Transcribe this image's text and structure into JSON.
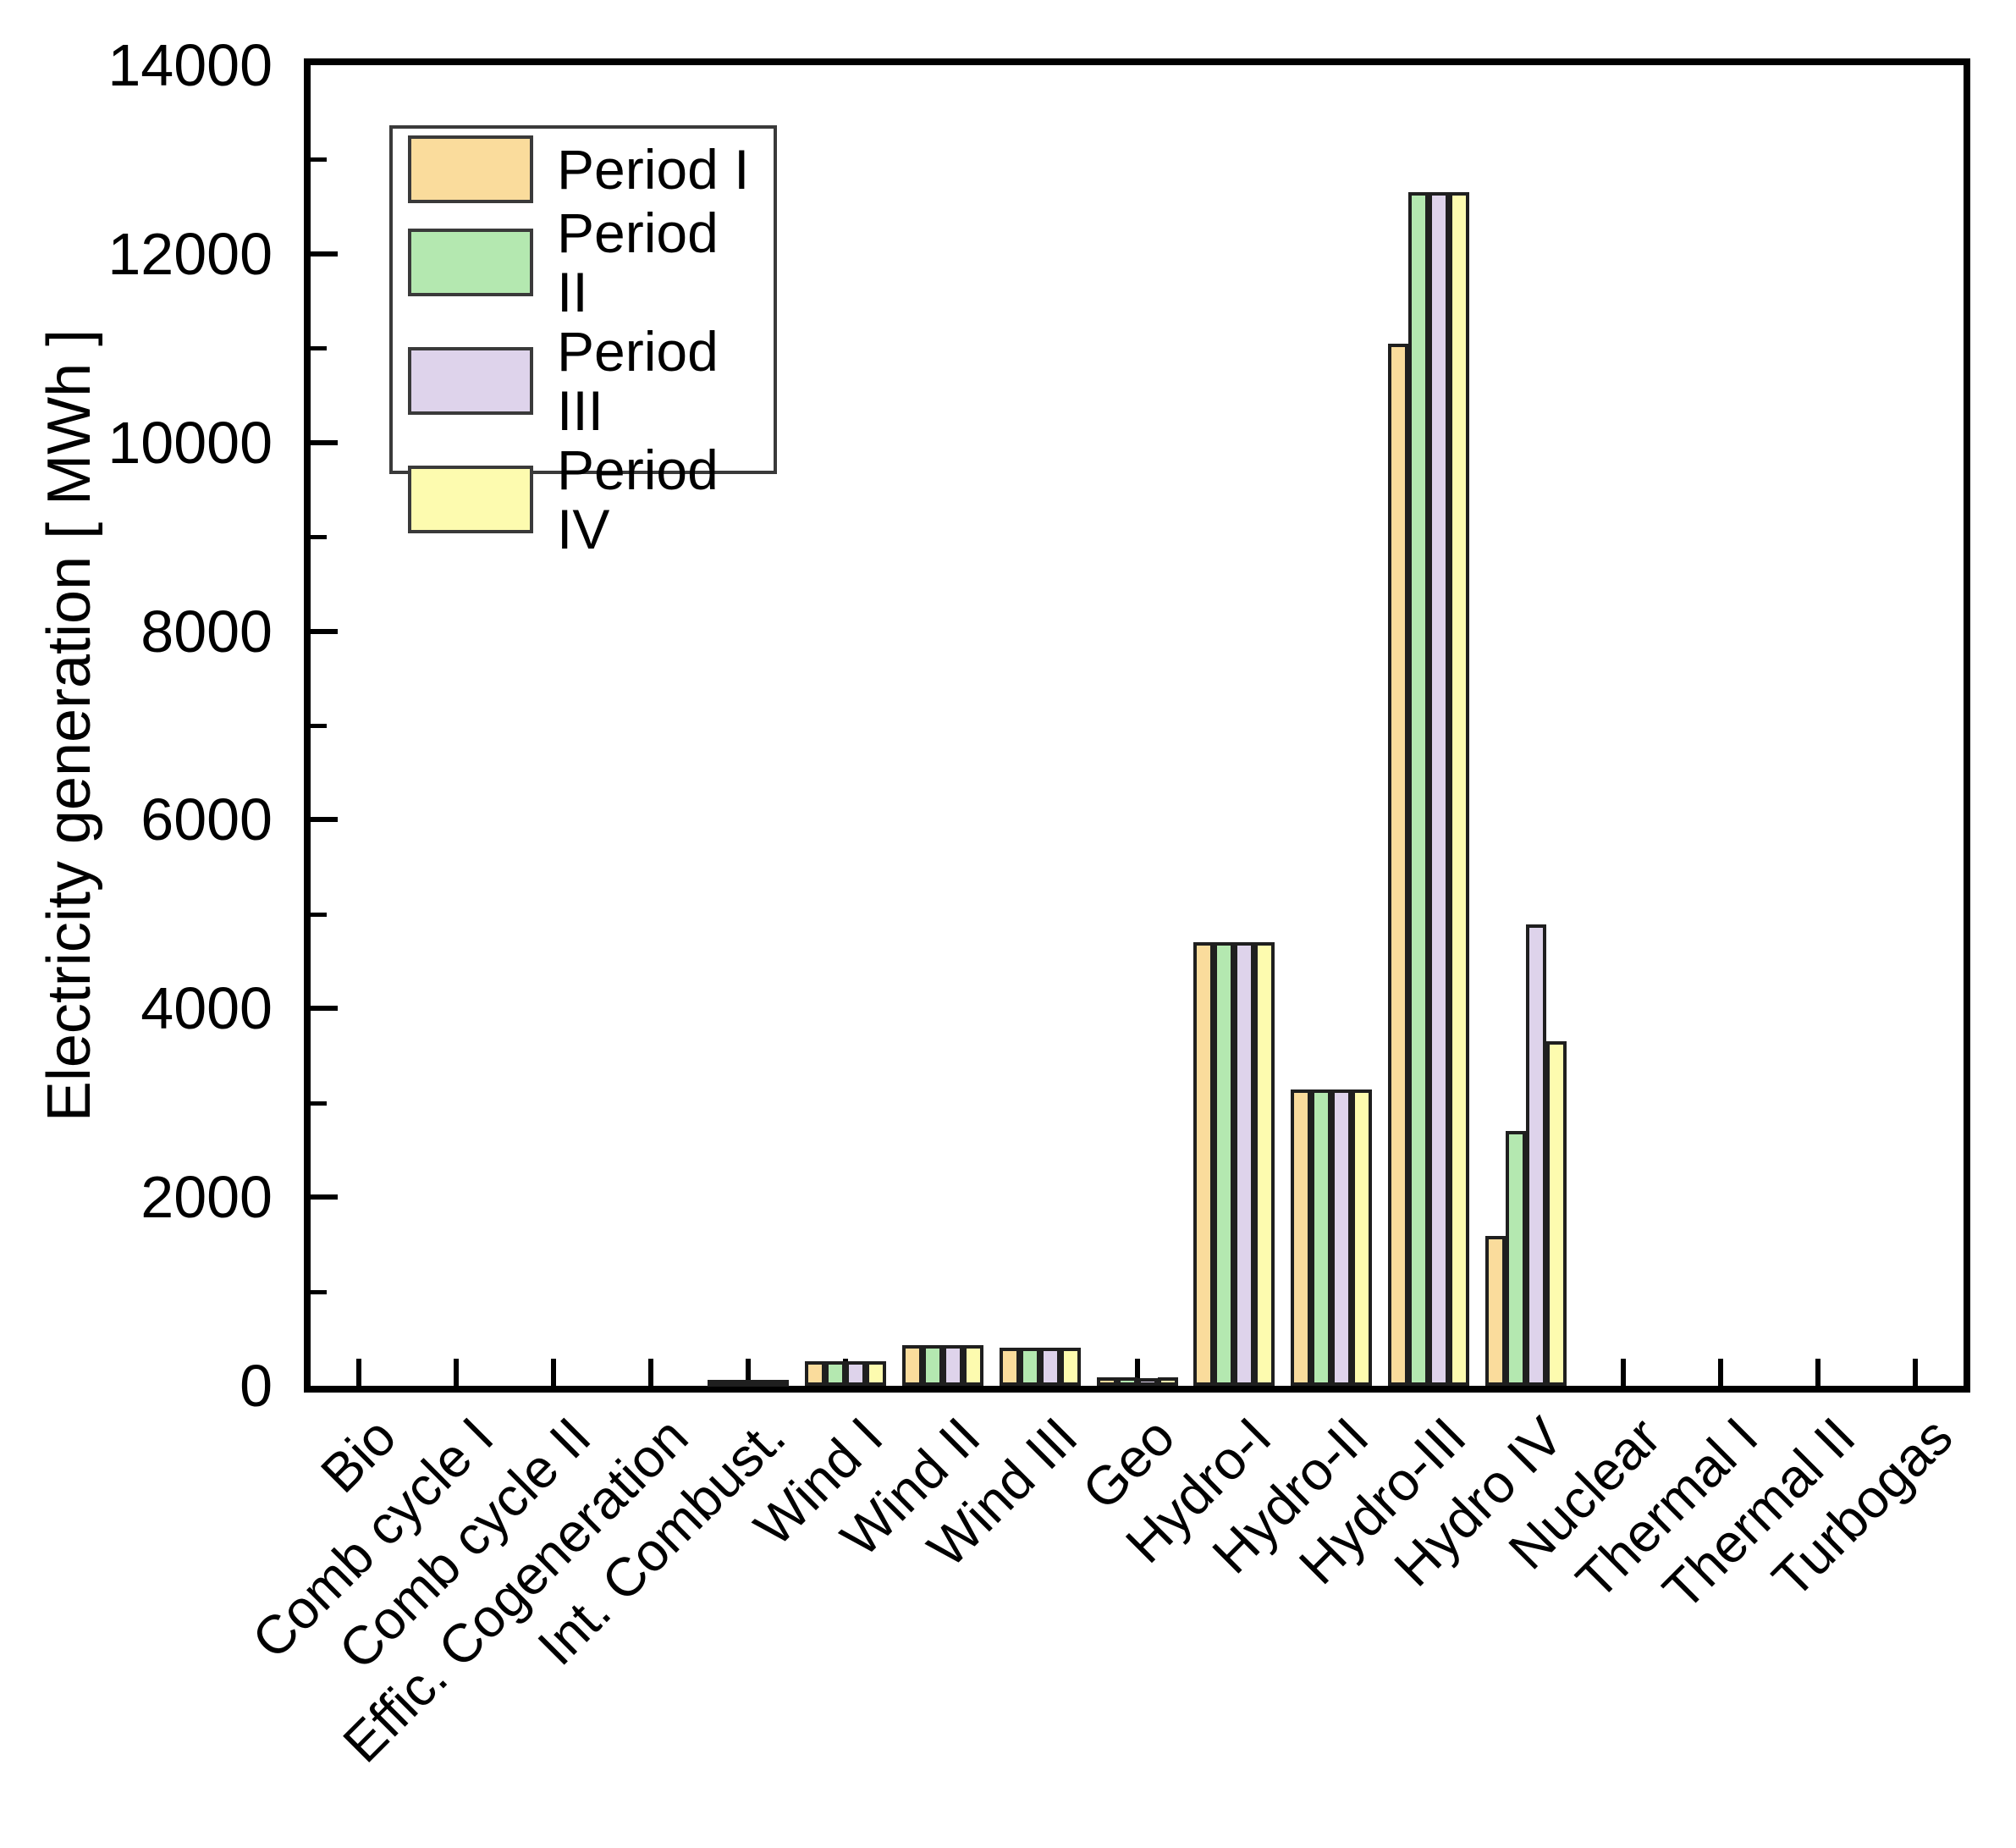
{
  "y_axis": {
    "label": "Electricity generation [ MWh ]",
    "tick_labels": [
      "0",
      "2000",
      "4000",
      "6000",
      "8000",
      "10000",
      "12000",
      "14000"
    ]
  },
  "legend": {
    "entries": [
      "Period I",
      "Period II",
      "Period III",
      "Period IV"
    ]
  },
  "chart_data": {
    "type": "bar",
    "title": "",
    "xlabel": "",
    "ylabel": "Electricity generation [ MWh ]",
    "ylim": [
      0,
      14000
    ],
    "y_major_step": 2000,
    "y_minor_step": 1000,
    "grid": false,
    "legend_position": "upper-left",
    "categories": [
      "Bio",
      "Comb cycle I",
      "Comb cycle II",
      "Effic. Cogeneration",
      "Int. Combust.",
      "Wind I",
      "Wind II",
      "Wind III",
      "Geo",
      "Hydro-I",
      "Hydro-II",
      "Hydro-III",
      "Hydro IV",
      "Nuclear",
      "Thermal I",
      "Thermal II",
      "Turbogas"
    ],
    "series": [
      {
        "name": "Period I",
        "color": "#FADC9C",
        "values": [
          0,
          0,
          0,
          0,
          25,
          260,
          430,
          400,
          90,
          4700,
          3140,
          11050,
          1590,
          0,
          0,
          0,
          0
        ]
      },
      {
        "name": "Period II",
        "color": "#B4E8B0",
        "values": [
          0,
          0,
          0,
          0,
          25,
          260,
          430,
          400,
          90,
          4700,
          3140,
          12650,
          2700,
          0,
          0,
          0,
          0
        ]
      },
      {
        "name": "Period III",
        "color": "#DED3EB",
        "values": [
          0,
          0,
          0,
          0,
          25,
          260,
          430,
          400,
          85,
          4700,
          3140,
          12650,
          4890,
          0,
          0,
          0,
          0
        ]
      },
      {
        "name": "Period IV",
        "color": "#FDFBAF",
        "values": [
          0,
          0,
          0,
          0,
          25,
          260,
          430,
          400,
          90,
          4700,
          3140,
          12650,
          3650,
          0,
          0,
          0,
          0
        ]
      }
    ],
    "bar_border_color": "#1f1f1f",
    "axis_color": "#000000"
  }
}
